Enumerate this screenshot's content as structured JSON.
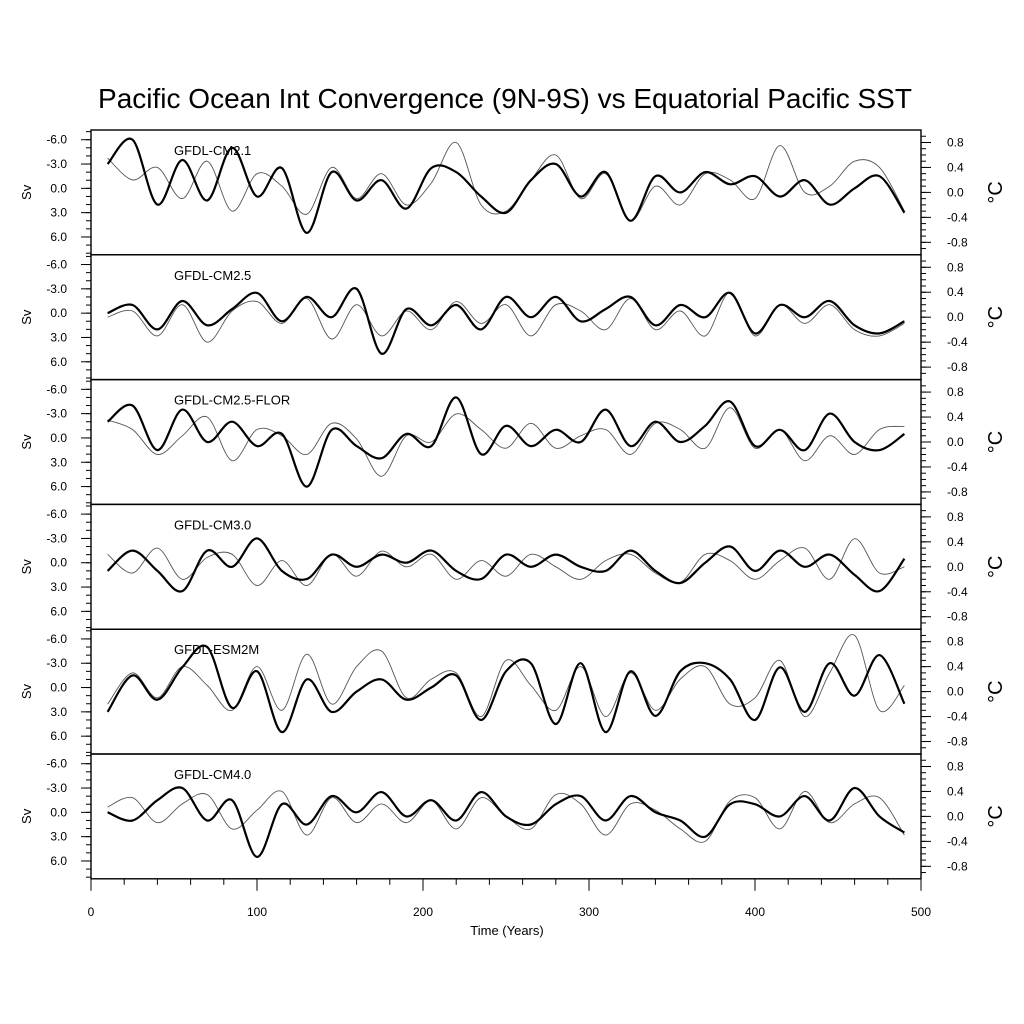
{
  "chart_data": {
    "type": "line",
    "title": "Pacific Ocean Int Convergence (9N-9S) vs Equatorial Pacific SST",
    "xlabel": "Time (Years)",
    "xlim": [
      0,
      500
    ],
    "xticks": [
      0,
      100,
      200,
      300,
      400,
      500
    ],
    "left_axis": {
      "label": "Sv",
      "reversed": true,
      "ylim": [
        -7.2,
        8.2
      ],
      "ticks": [
        -6.0,
        -3.0,
        0.0,
        3.0,
        6.0
      ],
      "tick_labels": [
        "-6.0",
        "-3.0",
        "0.0",
        "3.0",
        "6.0"
      ]
    },
    "right_axis": {
      "label": "°C",
      "ylim": [
        -1.0,
        1.0
      ],
      "ticks": [
        0.8,
        0.4,
        0.0,
        -0.4,
        -0.8
      ],
      "tick_labels": [
        "0.8",
        "0.4",
        "0.0",
        "-0.4",
        "-0.8"
      ]
    },
    "series_style": {
      "convergence": "thick black line (left axis, Sv)",
      "sst": "thin gray line (right axis, °C)"
    },
    "panels": [
      {
        "label": "GFDL-CM2.1",
        "x": [
          10,
          25,
          40,
          55,
          70,
          85,
          100,
          115,
          130,
          145,
          160,
          175,
          190,
          205,
          220,
          235,
          250,
          265,
          280,
          295,
          310,
          325,
          340,
          355,
          370,
          385,
          400,
          415,
          430,
          445,
          460,
          475,
          490
        ],
        "convergence": [
          -3.0,
          -6.0,
          2.0,
          -3.5,
          1.5,
          -5.0,
          1.0,
          -2.5,
          5.5,
          -2.0,
          1.5,
          -1.0,
          2.5,
          -2.5,
          -2.0,
          1.0,
          3.0,
          -1.0,
          -3.0,
          1.0,
          -2.0,
          4.0,
          -1.5,
          0.5,
          -2.0,
          -0.5,
          -1.5,
          1.0,
          -1.0,
          2.0,
          0.0,
          -1.5,
          3.0
        ],
        "sst": [
          0.55,
          0.2,
          0.4,
          -0.1,
          0.5,
          -0.3,
          0.3,
          0.1,
          -0.35,
          0.4,
          -0.1,
          0.3,
          -0.2,
          0.15,
          0.8,
          -0.2,
          -0.3,
          0.2,
          0.6,
          -0.1,
          0.3,
          -0.45,
          0.1,
          -0.2,
          0.3,
          0.2,
          -0.1,
          0.75,
          0.0,
          0.1,
          0.5,
          0.4,
          -0.3
        ]
      },
      {
        "label": "GFDL-CM2.5",
        "x": [
          10,
          25,
          40,
          55,
          70,
          85,
          100,
          115,
          130,
          145,
          160,
          175,
          190,
          205,
          220,
          235,
          250,
          265,
          280,
          295,
          310,
          325,
          340,
          355,
          370,
          385,
          400,
          415,
          430,
          445,
          460,
          475,
          490
        ],
        "convergence": [
          0.0,
          -1.0,
          2.0,
          -1.5,
          1.5,
          -0.5,
          -2.5,
          1.0,
          -2.0,
          0.5,
          -3.0,
          5.0,
          -0.5,
          1.5,
          -1.0,
          2.0,
          -2.0,
          0.5,
          -2.0,
          1.0,
          -0.5,
          -2.0,
          1.5,
          -1.0,
          0.5,
          -2.5,
          2.5,
          -1.0,
          0.5,
          -1.5,
          1.5,
          2.5,
          1.0
        ],
        "sst": [
          0.0,
          0.1,
          -0.3,
          0.2,
          -0.4,
          0.1,
          0.25,
          -0.1,
          0.3,
          -0.35,
          0.2,
          -0.3,
          0.1,
          -0.2,
          0.25,
          -0.1,
          0.2,
          -0.3,
          0.2,
          0.1,
          -0.2,
          0.3,
          -0.2,
          0.1,
          -0.3,
          0.4,
          -0.3,
          0.2,
          -0.1,
          0.2,
          -0.2,
          -0.3,
          -0.1
        ]
      },
      {
        "label": "GFDL-CM2.5-FLOR",
        "x": [
          10,
          25,
          40,
          55,
          70,
          85,
          100,
          115,
          130,
          145,
          160,
          175,
          190,
          205,
          220,
          235,
          250,
          265,
          280,
          295,
          310,
          325,
          340,
          355,
          370,
          385,
          400,
          415,
          430,
          445,
          460,
          475,
          490
        ],
        "convergence": [
          -2.0,
          -4.0,
          1.5,
          -3.5,
          0.5,
          -2.0,
          1.0,
          -0.5,
          6.0,
          -1.0,
          1.0,
          2.5,
          -0.5,
          1.0,
          -5.0,
          2.0,
          -1.5,
          1.0,
          -1.0,
          0.5,
          -3.5,
          1.0,
          -2.0,
          0.5,
          -1.5,
          -4.5,
          1.0,
          -1.0,
          1.5,
          -3.0,
          0.5,
          1.5,
          -0.5
        ],
        "sst": [
          0.35,
          0.2,
          -0.2,
          0.1,
          0.4,
          -0.3,
          0.2,
          0.1,
          -0.2,
          0.3,
          0.05,
          -0.55,
          0.1,
          0.0,
          0.45,
          0.2,
          -0.1,
          0.3,
          -0.1,
          0.1,
          0.2,
          -0.2,
          0.3,
          0.2,
          -0.1,
          0.55,
          -0.1,
          0.2,
          -0.3,
          0.1,
          -0.2,
          0.2,
          0.25
        ]
      },
      {
        "label": "GFDL-CM3.0",
        "x": [
          10,
          25,
          40,
          55,
          70,
          85,
          100,
          115,
          130,
          145,
          160,
          175,
          190,
          205,
          220,
          235,
          250,
          265,
          280,
          295,
          310,
          325,
          340,
          355,
          370,
          385,
          400,
          415,
          430,
          445,
          460,
          475,
          490
        ],
        "convergence": [
          1.0,
          -1.5,
          1.0,
          3.5,
          -1.5,
          0.5,
          -3.0,
          1.0,
          2.0,
          -1.0,
          0.5,
          -1.0,
          0.0,
          -1.5,
          1.0,
          2.0,
          -1.0,
          0.5,
          -1.0,
          0.5,
          1.0,
          -1.5,
          1.0,
          2.5,
          0.0,
          -2.0,
          1.0,
          -1.5,
          0.5,
          -1.0,
          1.5,
          3.5,
          -0.5
        ],
        "sst": [
          0.2,
          -0.1,
          0.3,
          -0.2,
          0.15,
          0.2,
          -0.3,
          0.1,
          -0.3,
          0.2,
          -0.15,
          0.25,
          0.0,
          0.2,
          -0.2,
          0.1,
          -0.15,
          0.2,
          0.0,
          -0.2,
          0.1,
          0.2,
          -0.1,
          -0.25,
          0.2,
          0.1,
          -0.2,
          0.1,
          0.3,
          -0.2,
          0.45,
          -0.1,
          0.0
        ]
      },
      {
        "label": "GFDL-ESM2M",
        "x": [
          10,
          25,
          40,
          55,
          70,
          85,
          100,
          115,
          130,
          145,
          160,
          175,
          190,
          205,
          220,
          235,
          250,
          265,
          280,
          295,
          310,
          325,
          340,
          355,
          370,
          385,
          400,
          415,
          430,
          445,
          460,
          475,
          490
        ],
        "convergence": [
          3.0,
          -1.5,
          1.5,
          -2.5,
          -5.0,
          2.5,
          -2.0,
          5.5,
          -1.0,
          3.0,
          0.5,
          -1.0,
          1.5,
          0.0,
          -1.5,
          4.0,
          -2.0,
          -3.0,
          4.5,
          -3.0,
          5.5,
          -2.0,
          3.5,
          -2.0,
          -3.0,
          -1.0,
          4.0,
          -2.5,
          3.0,
          -3.0,
          1.0,
          -4.0,
          2.0
        ],
        "sst": [
          -0.2,
          0.3,
          -0.1,
          0.4,
          0.1,
          -0.3,
          0.4,
          -0.3,
          0.6,
          -0.2,
          0.4,
          0.65,
          -0.1,
          0.2,
          0.3,
          -0.4,
          0.5,
          0.1,
          -0.3,
          0.4,
          -0.4,
          0.3,
          -0.3,
          0.2,
          0.4,
          -0.2,
          -0.1,
          0.5,
          -0.4,
          0.3,
          0.9,
          -0.3,
          0.1
        ]
      },
      {
        "label": "GFDL-CM4.0",
        "x": [
          10,
          25,
          40,
          55,
          70,
          85,
          100,
          115,
          130,
          145,
          160,
          175,
          190,
          205,
          220,
          235,
          250,
          265,
          280,
          295,
          310,
          325,
          340,
          355,
          370,
          385,
          400,
          415,
          430,
          445,
          460,
          475,
          490
        ],
        "convergence": [
          0.0,
          1.0,
          -1.5,
          -3.0,
          1.0,
          -1.5,
          5.5,
          -1.0,
          1.5,
          -2.0,
          0.0,
          -2.5,
          0.5,
          -1.5,
          1.0,
          -2.5,
          0.5,
          1.5,
          -1.0,
          -2.0,
          1.0,
          -2.0,
          0.0,
          1.0,
          3.0,
          -1.0,
          -1.0,
          0.5,
          -2.0,
          1.0,
          -3.0,
          0.5,
          2.5
        ],
        "sst": [
          0.15,
          0.3,
          -0.1,
          0.2,
          0.35,
          -0.2,
          0.1,
          0.4,
          -0.3,
          0.3,
          -0.1,
          0.2,
          -0.1,
          0.25,
          -0.2,
          0.3,
          0.0,
          -0.2,
          0.35,
          0.2,
          -0.3,
          0.2,
          0.1,
          -0.2,
          -0.4,
          0.25,
          0.3,
          -0.2,
          0.4,
          -0.1,
          0.2,
          0.3,
          -0.3
        ]
      }
    ]
  }
}
